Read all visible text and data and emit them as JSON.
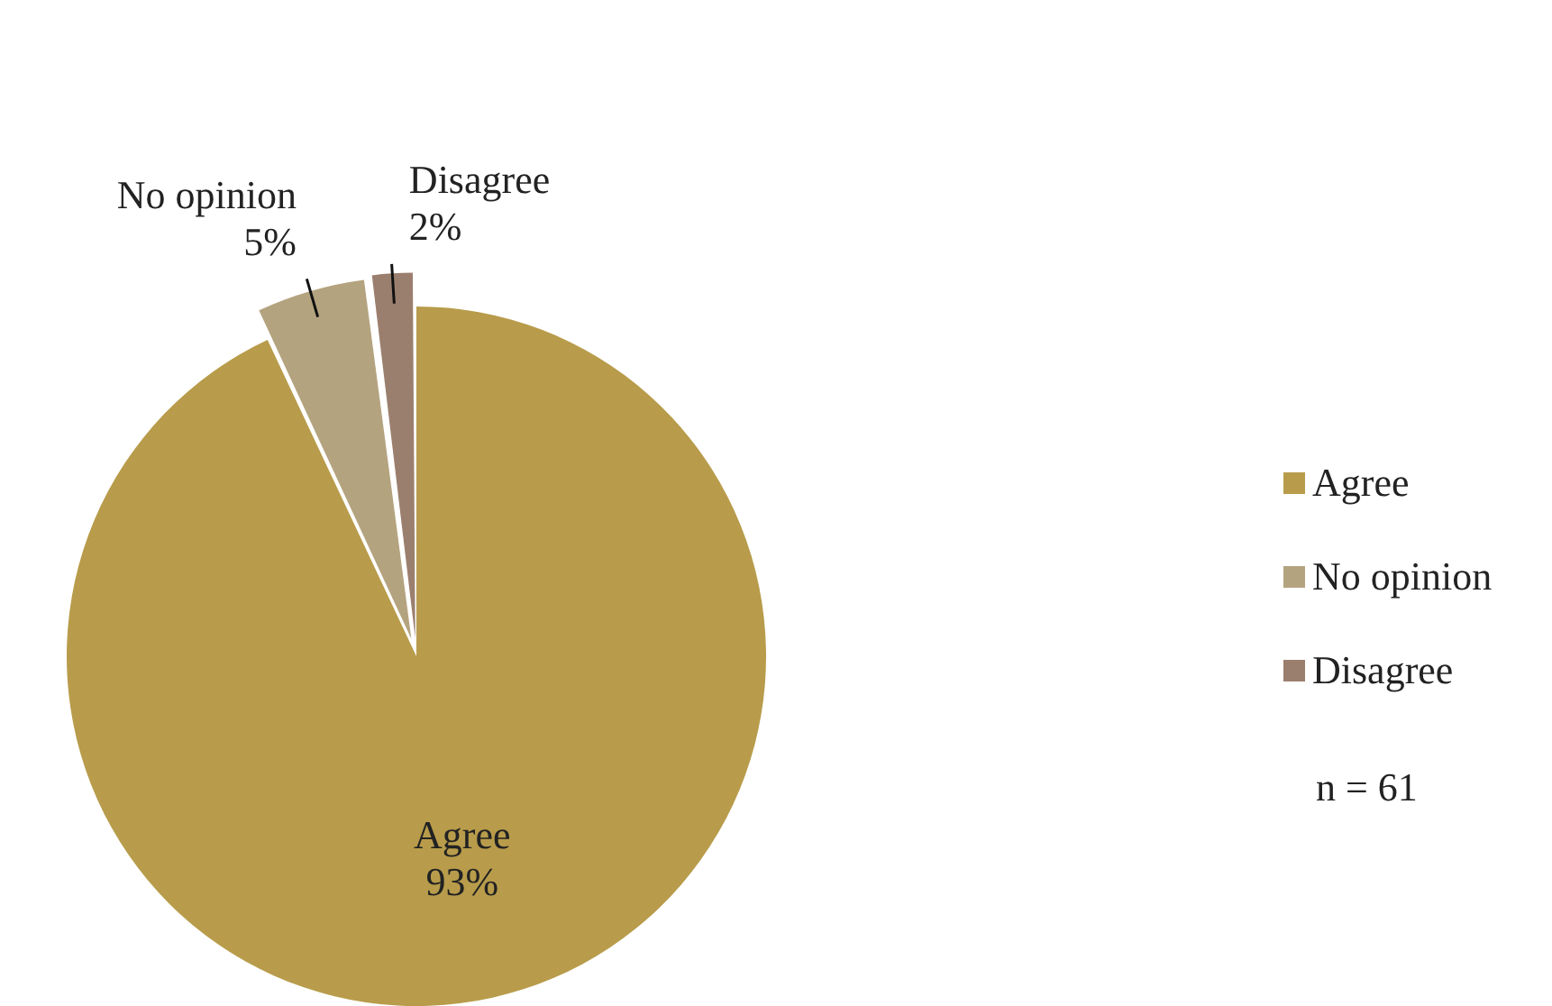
{
  "chart_data": {
    "type": "pie",
    "categories": [
      "Agree",
      "No opinion",
      "Disagree"
    ],
    "values": [
      93,
      5,
      2
    ],
    "colors": [
      "#b89c4b",
      "#b4a37f",
      "#9b7f6e"
    ],
    "value_labels": [
      "93%",
      "5%",
      "2%"
    ],
    "legend": "right",
    "annotations": [
      "n = 61"
    ]
  }
}
